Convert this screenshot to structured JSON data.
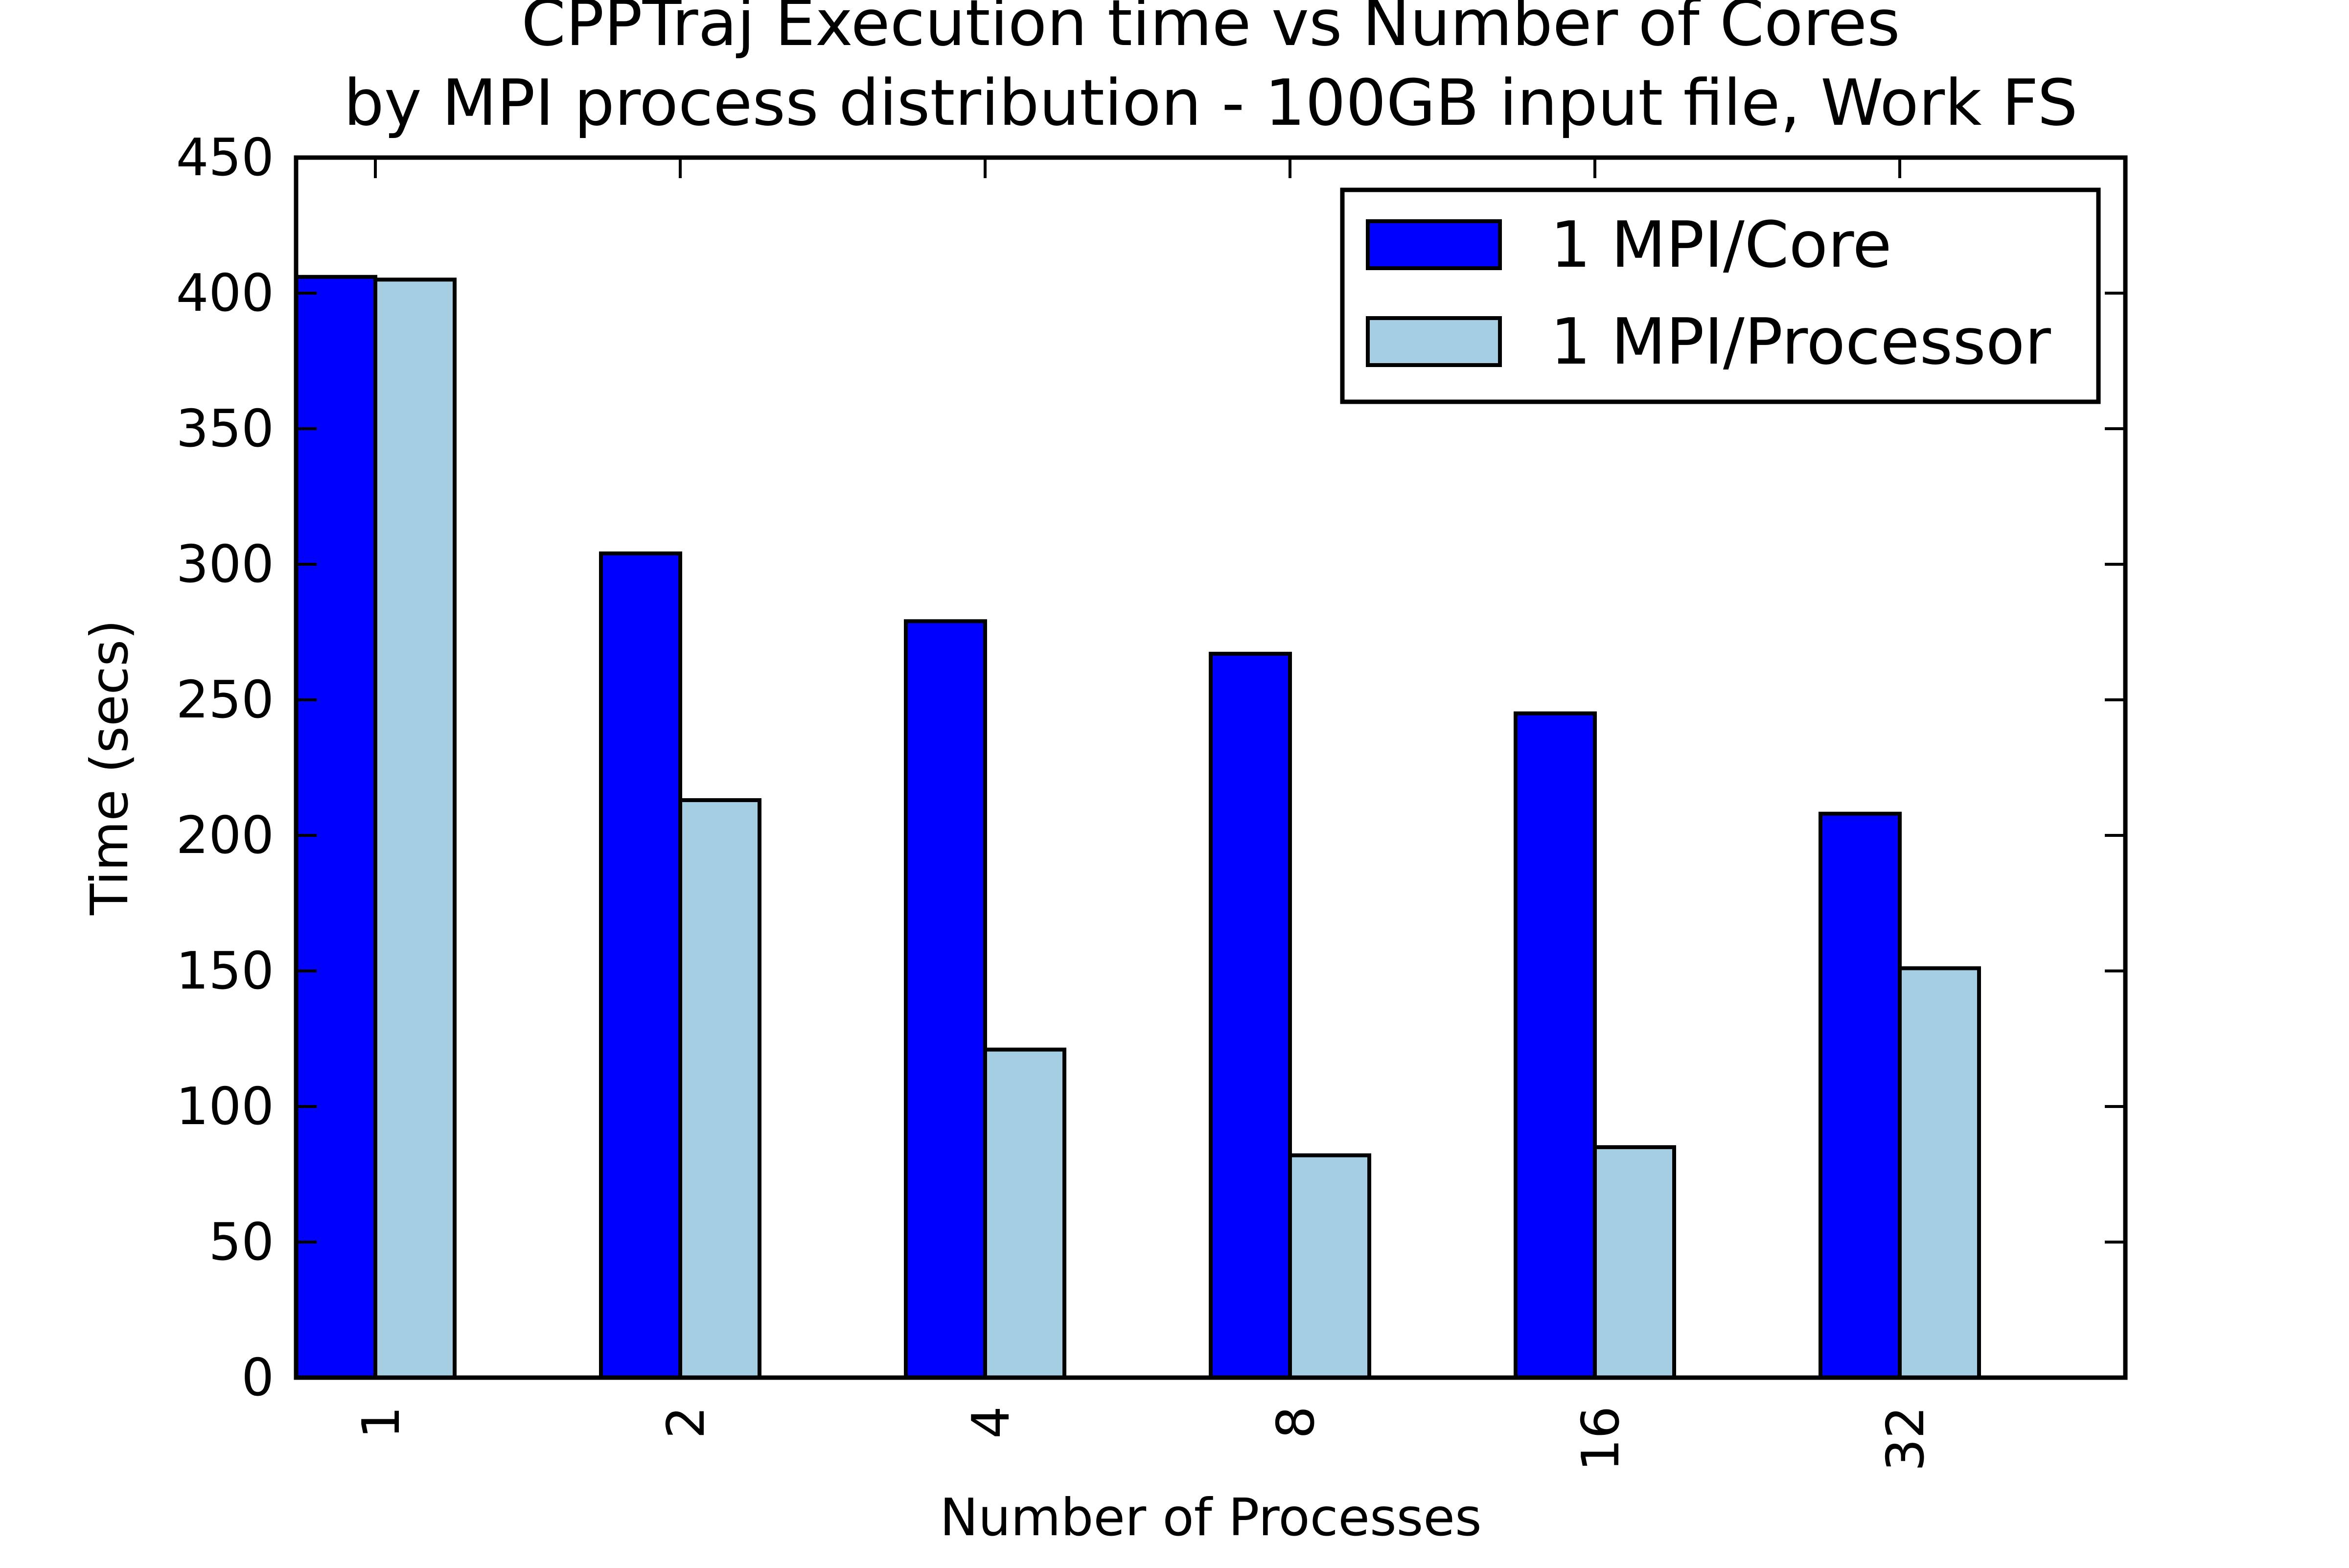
{
  "chart_data": {
    "type": "bar",
    "title": "CPPTraj Execution time vs Number of Cores",
    "subtitle": "by MPI process distribution - 100GB input file, Work FS",
    "xlabel": "Number of Processes",
    "ylabel": "Time (secs)",
    "categories": [
      "1",
      "2",
      "4",
      "8",
      "16",
      "32"
    ],
    "series": [
      {
        "name": "1 MPI/Core",
        "color": "#0000ff",
        "values": [
          406,
          304,
          279,
          267,
          245,
          208
        ]
      },
      {
        "name": "1 MPI/Processor",
        "color": "#a6cee3",
        "values": [
          405,
          213,
          121,
          82,
          85,
          151
        ]
      }
    ],
    "ylim": [
      0,
      450
    ],
    "yticks": [
      0,
      50,
      100,
      150,
      200,
      250,
      300,
      350,
      400,
      450
    ],
    "legend": "top-right",
    "grid": false
  }
}
